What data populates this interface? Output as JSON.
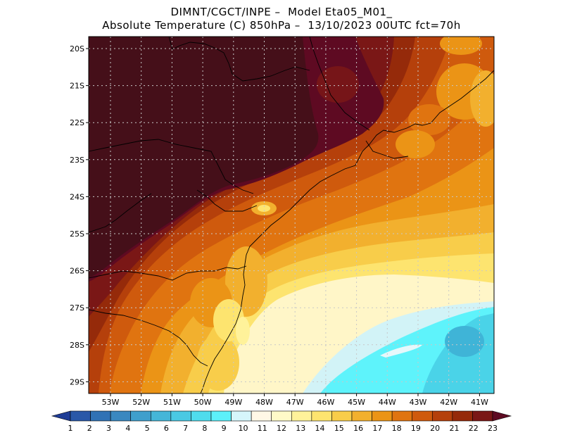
{
  "header": {
    "line1": "DIMNT/CGCT/INPE –  Model Eta05_M01_",
    "line2": "Absolute Temperature (C) 850hPa –  13/10/2023 00UTC fct=70h"
  },
  "map": {
    "lat_labels": [
      "20S",
      "21S",
      "22S",
      "23S",
      "24S",
      "25S",
      "26S",
      "27S",
      "28S",
      "29S"
    ],
    "lon_labels": [
      "53W",
      "52W",
      "51W",
      "50W",
      "49W",
      "48W",
      "47W",
      "46W",
      "45W",
      "44W",
      "43W",
      "42W",
      "41W"
    ]
  },
  "legend": {
    "labels": [
      "1",
      "2",
      "3",
      "4",
      "5",
      "6",
      "7",
      "8",
      "9",
      "10",
      "11",
      "12",
      "13",
      "14",
      "15",
      "16",
      "17",
      "18",
      "19",
      "20",
      "21",
      "22",
      "23"
    ],
    "colors": [
      "#1e3c96",
      "#2a58a8",
      "#3172b5",
      "#3a88c0",
      "#3f9fcc",
      "#45b6d8",
      "#4ac9e3",
      "#4fdced",
      "#5cf0fa",
      "#d6f6fb",
      "#fff8e6",
      "#fffac8",
      "#fff29a",
      "#fde46f",
      "#f8cd4a",
      "#f2b02e",
      "#eb9416",
      "#e07410",
      "#cf5a0d",
      "#b5400b",
      "#952a0a",
      "#7a1716",
      "#5e0a22"
    ]
  },
  "colors": {
    "darkest": "#450f19",
    "cyan": "#5ef3fb",
    "light_cyan": "#d2f3f7"
  }
}
